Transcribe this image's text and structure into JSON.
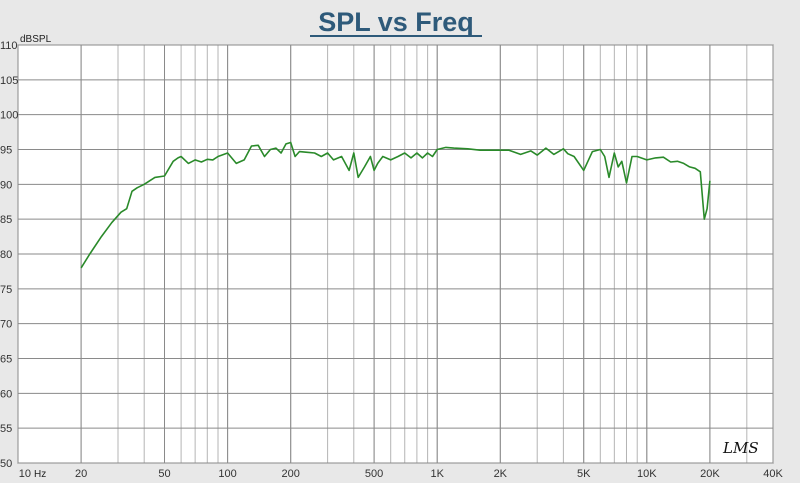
{
  "chart_data": {
    "type": "line",
    "title": "SPL vs Freq",
    "ylabel": "dBSPL",
    "x_unit_label": "Hz",
    "x_scale": "log",
    "xlim": [
      10,
      40000
    ],
    "ylim": [
      50,
      110
    ],
    "grid": true,
    "y_ticks": [
      {
        "value": 110,
        "label": "110"
      },
      {
        "value": 105,
        "label": "105"
      },
      {
        "value": 100,
        "label": "100"
      },
      {
        "value": 95,
        "label": "95"
      },
      {
        "value": 90,
        "label": "90"
      },
      {
        "value": 85,
        "label": "85"
      },
      {
        "value": 80,
        "label": "80"
      },
      {
        "value": 75,
        "label": "75"
      },
      {
        "value": 70,
        "label": "70"
      },
      {
        "value": 65,
        "label": "65"
      },
      {
        "value": 60,
        "label": "60"
      },
      {
        "value": 55,
        "label": "55"
      },
      {
        "value": 50,
        "label": "50"
      }
    ],
    "x_ticks": [
      {
        "value": 10,
        "label": "10"
      },
      {
        "value": 20,
        "label": "20"
      },
      {
        "value": 50,
        "label": "50"
      },
      {
        "value": 100,
        "label": "100"
      },
      {
        "value": 200,
        "label": "200"
      },
      {
        "value": 500,
        "label": "500"
      },
      {
        "value": 1000,
        "label": "1K"
      },
      {
        "value": 2000,
        "label": "2K"
      },
      {
        "value": 5000,
        "label": "5K"
      },
      {
        "value": 10000,
        "label": "10K"
      },
      {
        "value": 20000,
        "label": "20K"
      },
      {
        "value": 40000,
        "label": "40K"
      }
    ],
    "series": [
      {
        "color": "#2a8a2a",
        "x": [
          20,
          22,
          25,
          28,
          31,
          33,
          35,
          37,
          40,
          45,
          50,
          55,
          58,
          60,
          65,
          70,
          75,
          80,
          85,
          90,
          100,
          110,
          120,
          130,
          140,
          150,
          160,
          170,
          180,
          190,
          200,
          210,
          220,
          240,
          260,
          280,
          300,
          320,
          350,
          380,
          400,
          420,
          450,
          480,
          500,
          520,
          550,
          600,
          650,
          700,
          750,
          800,
          850,
          900,
          950,
          1000,
          1100,
          1200,
          1400,
          1600,
          1800,
          2000,
          2200,
          2500,
          2800,
          3000,
          3300,
          3600,
          4000,
          4200,
          4500,
          5000,
          5500,
          6000,
          6300,
          6600,
          7000,
          7300,
          7600,
          8000,
          8500,
          9000,
          10000,
          11000,
          12000,
          13000,
          14000,
          15000,
          16000,
          17000,
          18000,
          18800,
          19400,
          20000
        ],
        "y": [
          78,
          80,
          82.5,
          84.5,
          86,
          86.5,
          89,
          89.5,
          90,
          91,
          91.2,
          93.3,
          93.8,
          94,
          93,
          93.5,
          93.2,
          93.6,
          93.5,
          94,
          94.5,
          93,
          93.5,
          95.5,
          95.6,
          94,
          95,
          95.2,
          94.5,
          95.8,
          96,
          94,
          94.7,
          94.6,
          94.5,
          94,
          94.5,
          93.5,
          94,
          92,
          94.5,
          91,
          92.5,
          94,
          92,
          93,
          94,
          93.5,
          94,
          94.5,
          93.8,
          94.5,
          93.8,
          94.5,
          94,
          95,
          95.3,
          95.2,
          95.1,
          94.9,
          94.9,
          94.9,
          94.9,
          94.3,
          94.8,
          94.2,
          95.2,
          94.3,
          95.1,
          94.4,
          94,
          92,
          94.7,
          95,
          94,
          91,
          94.5,
          92.5,
          93.3,
          90.2,
          94,
          94,
          93.5,
          93.8,
          93.9,
          93.2,
          93.3,
          93,
          92.5,
          92.3,
          91.8,
          85,
          86.5,
          90.5
        ]
      }
    ]
  },
  "logo_text": "LMS"
}
